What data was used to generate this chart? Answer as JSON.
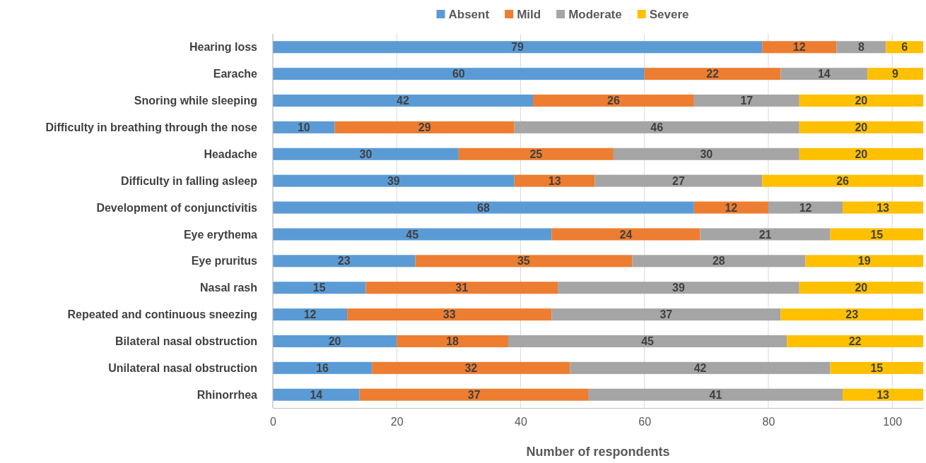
{
  "chart_data": {
    "type": "bar",
    "orientation": "horizontal",
    "stacked": true,
    "xlabel": "Number of respondents",
    "categories": [
      "Hearing loss",
      "Earache",
      "Snoring while sleeping",
      "Difficulty in breathing through the nose",
      "Headache",
      "Difficulty in falling asleep",
      "Development of conjunctivitis",
      "Eye erythema",
      "Eye pruritus",
      "Nasal rash",
      "Repeated and continuous sneezing",
      "Bilateral nasal obstruction",
      "Unilateral nasal obstruction",
      "Rhinorrhea"
    ],
    "series": [
      {
        "name": "Absent",
        "color": "#5b9bd5",
        "values": [
          79,
          60,
          42,
          10,
          30,
          39,
          68,
          45,
          23,
          15,
          12,
          20,
          16,
          14
        ]
      },
      {
        "name": "Mild",
        "color": "#ed7d31",
        "values": [
          12,
          22,
          26,
          29,
          25,
          13,
          12,
          24,
          35,
          31,
          33,
          18,
          32,
          37
        ]
      },
      {
        "name": "Moderate",
        "color": "#a5a5a5",
        "values": [
          8,
          14,
          17,
          46,
          30,
          27,
          12,
          21,
          28,
          39,
          37,
          45,
          42,
          41
        ]
      },
      {
        "name": "Severe",
        "color": "#ffc000",
        "values": [
          6,
          9,
          20,
          20,
          20,
          26,
          13,
          15,
          19,
          20,
          23,
          22,
          15,
          13
        ]
      }
    ],
    "xlim": [
      0,
      105
    ],
    "xticks": [
      0,
      20,
      40,
      60,
      80,
      100
    ],
    "grid": "x",
    "legend": "top",
    "data_labels": true
  }
}
